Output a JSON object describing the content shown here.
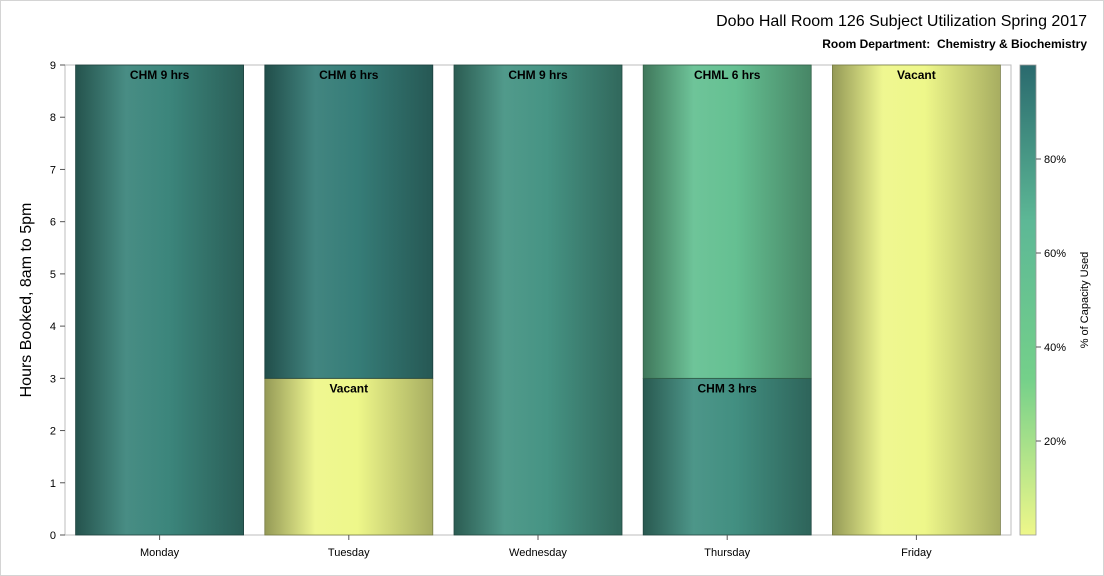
{
  "chart_data": {
    "type": "bar",
    "title": "Dobo Hall Room 126 Subject Utilization Spring 2017",
    "subtitle": "Room Department:  Chemistry & Biochemistry",
    "xlabel": "",
    "ylabel": "Hours Booked, 8am to 5pm",
    "ylim": [
      0,
      9
    ],
    "yticks": [
      "0",
      "1",
      "2",
      "3",
      "4",
      "5",
      "6",
      "7",
      "8",
      "9"
    ],
    "categories": [
      "Monday",
      "Tuesday",
      "Wednesday",
      "Thursday",
      "Friday"
    ],
    "stacked": true,
    "segments": [
      {
        "category": "Monday",
        "start": 0,
        "end": 9,
        "label": "CHM 9 hrs",
        "capacity_pct": 88
      },
      {
        "category": "Tuesday",
        "start": 0,
        "end": 3,
        "label": "Vacant",
        "capacity_pct": 0
      },
      {
        "category": "Tuesday",
        "start": 3,
        "end": 9,
        "label": "CHM 6 hrs",
        "capacity_pct": 92
      },
      {
        "category": "Wednesday",
        "start": 0,
        "end": 9,
        "label": "CHM 9 hrs",
        "capacity_pct": 82
      },
      {
        "category": "Thursday",
        "start": 0,
        "end": 3,
        "label": "CHM 3 hrs",
        "capacity_pct": 84
      },
      {
        "category": "Thursday",
        "start": 3,
        "end": 9,
        "label": "CHML 6 hrs",
        "capacity_pct": 55
      },
      {
        "category": "Friday",
        "start": 0,
        "end": 9,
        "label": "Vacant",
        "capacity_pct": 0
      }
    ],
    "colorbar": {
      "label": "% of Capacity Used",
      "range": [
        0,
        100
      ],
      "ticks": [
        "20%",
        "40%",
        "60%",
        "80%"
      ],
      "tick_values": [
        20,
        40,
        60,
        80
      ],
      "colors": [
        "#eef78a",
        "#74d08a",
        "#5db896",
        "#2a6a6e"
      ]
    },
    "legend": "right",
    "grid": false
  }
}
